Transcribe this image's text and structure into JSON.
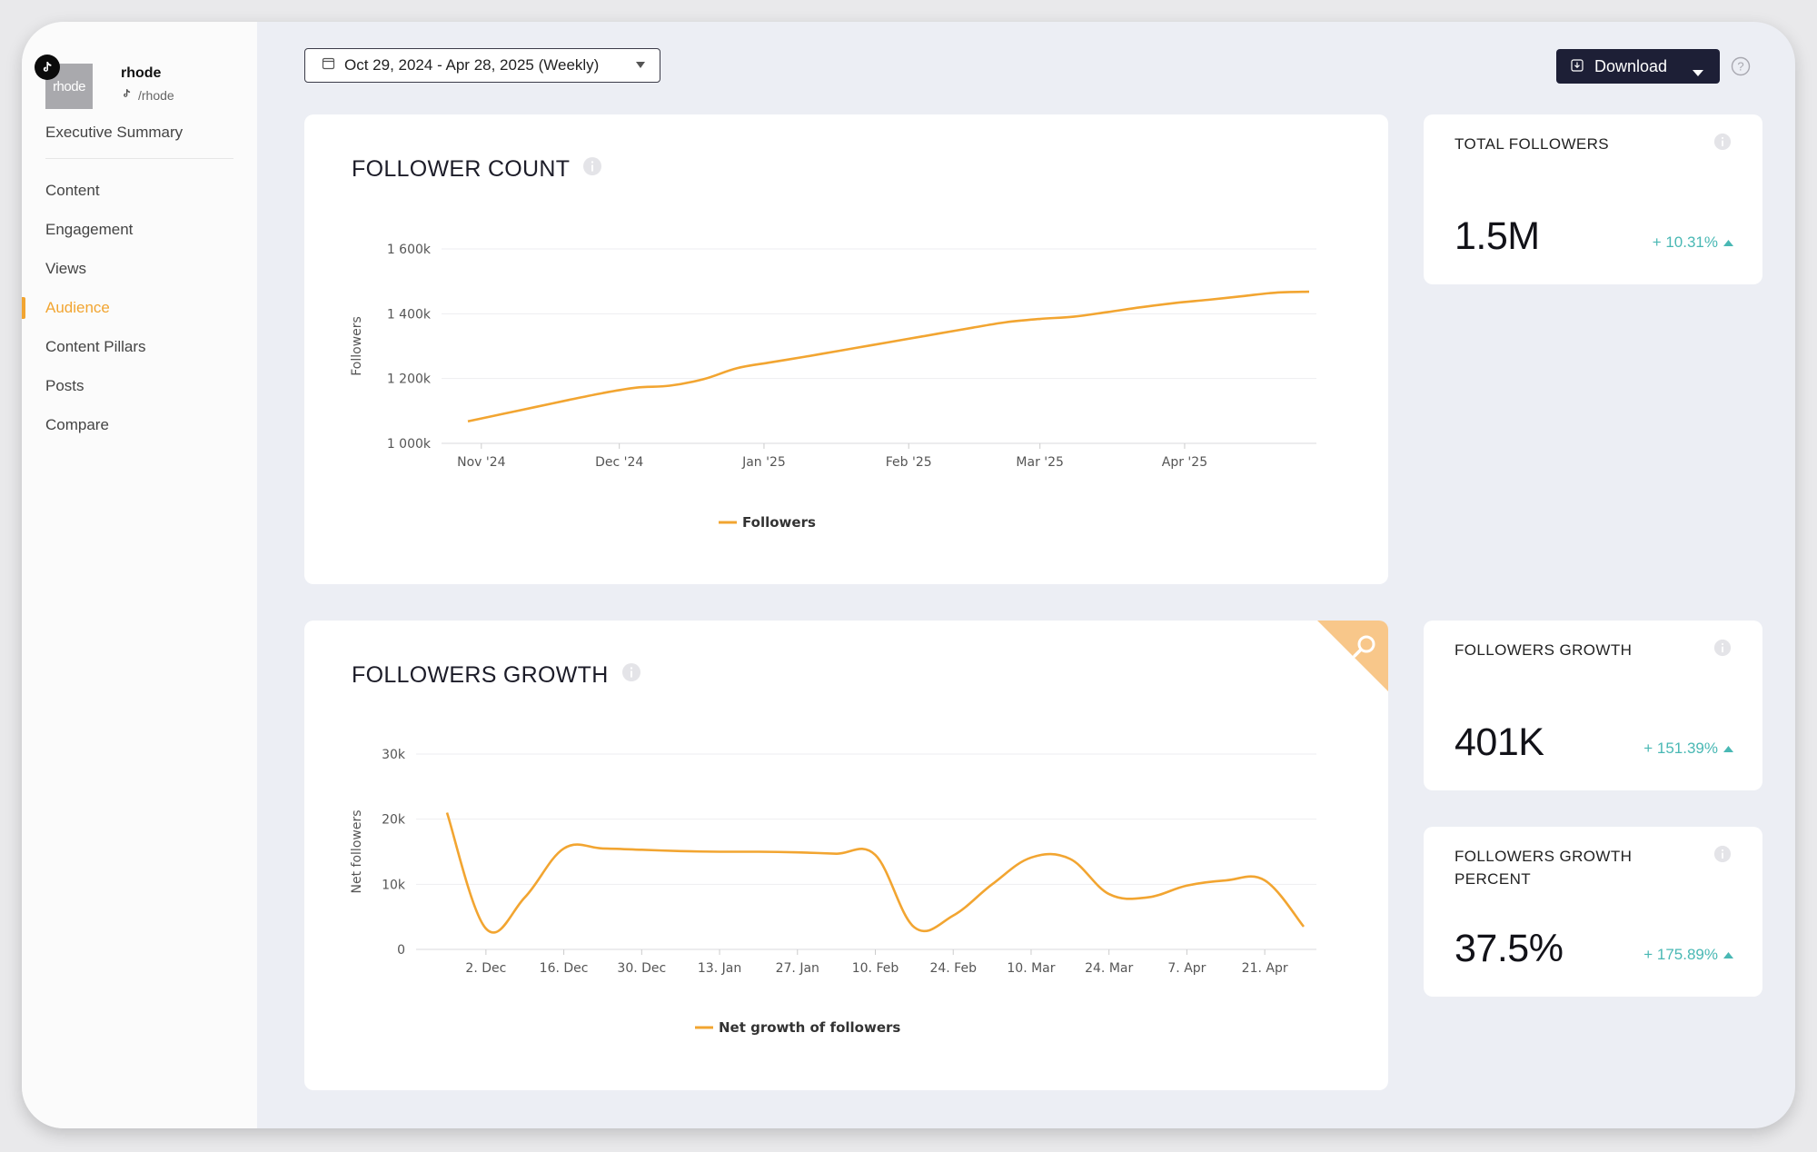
{
  "profile": {
    "avatar_text": "rhode",
    "name": "rhode",
    "handle": "/rhode"
  },
  "nav": {
    "first": "Executive Summary",
    "items": [
      "Content",
      "Engagement",
      "Views",
      "Audience",
      "Content Pillars",
      "Posts",
      "Compare"
    ],
    "active": "Audience"
  },
  "toolbar": {
    "date_range": "Oct 29, 2024 - Apr 28, 2025 (Weekly)",
    "download_label": "Download"
  },
  "colors": {
    "accent": "#f2a531",
    "delta": "#49b8b4",
    "button_bg": "#1d1f36"
  },
  "follower_count_card": {
    "title": "FOLLOWER COUNT"
  },
  "followers_growth_card": {
    "title": "FOLLOWERS GROWTH"
  },
  "stats": {
    "total_followers": {
      "label": "TOTAL FOLLOWERS",
      "value": "1.5M",
      "delta": "+ 10.31%"
    },
    "followers_growth": {
      "label": "FOLLOWERS GROWTH",
      "value": "401K",
      "delta": "+ 151.39%"
    },
    "followers_growth_percent": {
      "label_line1": "FOLLOWERS GROWTH",
      "label_line2": "PERCENT",
      "value": "37.5%",
      "delta": "+ 175.89%"
    }
  },
  "chart_data": [
    {
      "type": "line",
      "title": "FOLLOWER COUNT",
      "ylabel": "Followers",
      "ylim": [
        1000,
        1600
      ],
      "yticks": [
        1000,
        1200,
        1400,
        1600
      ],
      "ytick_labels": [
        "1 000k",
        "1 200k",
        "1 400k",
        "1 600k"
      ],
      "x_tick_labels": [
        "Nov '24",
        "Dec '24",
        "Jan '25",
        "Feb '25",
        "Mar '25",
        "Apr '25"
      ],
      "x_tick_positions": [
        0.4,
        4.5,
        8.8,
        13.1,
        17.0,
        21.3
      ],
      "grid": true,
      "legend": "bottom-center",
      "series": [
        {
          "name": "Followers",
          "x": [
            0,
            1,
            2,
            3,
            4,
            5,
            6,
            7,
            8,
            9,
            10,
            11,
            12,
            13,
            14,
            15,
            16,
            17,
            18,
            19,
            20,
            21,
            22,
            23,
            24,
            25
          ],
          "values": [
            1068,
            1090,
            1112,
            1134,
            1155,
            1172,
            1178,
            1198,
            1232,
            1250,
            1267,
            1285,
            1303,
            1321,
            1339,
            1357,
            1374,
            1384,
            1391,
            1405,
            1420,
            1433,
            1443,
            1454,
            1465,
            1468
          ]
        }
      ]
    },
    {
      "type": "line",
      "title": "FOLLOWERS GROWTH",
      "ylabel": "Net followers",
      "ylim": [
        0,
        30
      ],
      "yticks": [
        0,
        10,
        20,
        30
      ],
      "ytick_labels": [
        "0",
        "10k",
        "20k",
        "30k"
      ],
      "x_tick_labels": [
        "2. Dec",
        "16. Dec",
        "30. Dec",
        "13. Jan",
        "27. Jan",
        "10. Feb",
        "24. Feb",
        "10. Mar",
        "24. Mar",
        "7. Apr",
        "21. Apr"
      ],
      "x_tick_positions": [
        1,
        3,
        5,
        7,
        9,
        11,
        13,
        15,
        17,
        19,
        21
      ],
      "grid": true,
      "legend": "bottom-center",
      "series": [
        {
          "name": "Net growth of followers",
          "x": [
            0,
            1,
            2,
            3,
            4,
            5,
            6,
            7,
            8,
            9,
            10,
            11,
            12,
            13,
            14,
            15,
            16,
            17,
            18,
            19,
            20,
            21,
            22
          ],
          "values": [
            21,
            3.2,
            8,
            15.5,
            15.5,
            15.3,
            15.1,
            15.0,
            15.0,
            14.9,
            14.7,
            14.5,
            3.4,
            5.2,
            10.0,
            14.1,
            13.9,
            8.5,
            8.0,
            9.8,
            10.6,
            10.6,
            3.5
          ]
        }
      ]
    }
  ]
}
